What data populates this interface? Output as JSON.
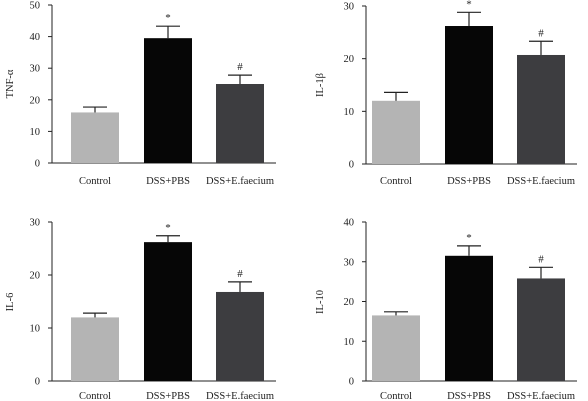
{
  "chart_data": [
    {
      "type": "bar",
      "ylabel": "TNF-α",
      "xlabel": "",
      "ylim": [
        0,
        50
      ],
      "yticks": [
        "0",
        "10",
        "20",
        "30",
        "40",
        "50"
      ],
      "categories": [
        "Control",
        "DSS+PBS",
        "DSS+E.faecium"
      ],
      "values": [
        16,
        39.5,
        25
      ],
      "errors": [
        1.7,
        3.8,
        2.8
      ],
      "markers": [
        "",
        "*",
        "#"
      ],
      "colors": [
        "#b4b4b4",
        "#060606",
        "#3d3d40"
      ]
    },
    {
      "type": "bar",
      "ylabel": "IL-1β",
      "xlabel": "",
      "ylim": [
        0,
        30
      ],
      "yticks": [
        "0",
        "10",
        "20",
        "30"
      ],
      "categories": [
        "Control",
        "DSS+PBS",
        "DSS+E.faecium"
      ],
      "values": [
        12,
        26.2,
        20.7
      ],
      "errors": [
        1.6,
        2.6,
        2.6
      ],
      "markers": [
        "",
        "*",
        "#"
      ],
      "colors": [
        "#b4b4b4",
        "#060606",
        "#3d3d40"
      ]
    },
    {
      "type": "bar",
      "ylabel": "IL-6",
      "xlabel": "",
      "ylim": [
        0,
        30
      ],
      "yticks": [
        "0",
        "10",
        "20",
        "30"
      ],
      "categories": [
        "Control",
        "DSS+PBS",
        "DSS+E.faecium"
      ],
      "values": [
        12,
        26.2,
        16.8
      ],
      "errors": [
        0.8,
        1.2,
        1.9
      ],
      "markers": [
        "",
        "*",
        "#"
      ],
      "colors": [
        "#b4b4b4",
        "#060606",
        "#3d3d40"
      ]
    },
    {
      "type": "bar",
      "ylabel": "IL-10",
      "xlabel": "",
      "ylim": [
        0,
        40
      ],
      "yticks": [
        "0",
        "10",
        "20",
        "30",
        "40"
      ],
      "categories": [
        "Control",
        "DSS+PBS",
        "DSS+E.faecium"
      ],
      "values": [
        16.5,
        31.5,
        25.8
      ],
      "errors": [
        0.9,
        2.5,
        2.8
      ],
      "markers": [
        "",
        "*",
        "#"
      ],
      "colors": [
        "#b4b4b4",
        "#060606",
        "#3d3d40"
      ]
    }
  ]
}
